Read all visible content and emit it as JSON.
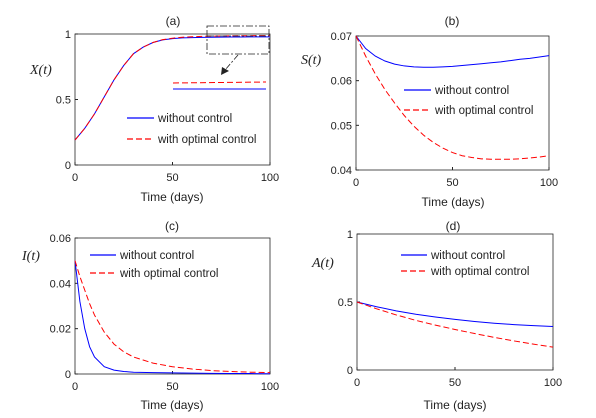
{
  "chart_data": [
    {
      "type": "line",
      "panel": "(a)",
      "title": "(a)",
      "xlabel": "Time (days)",
      "ylabel": "X(t)",
      "xlim": [
        0,
        100
      ],
      "ylim": [
        0,
        1
      ],
      "xticks": [
        "0",
        "50",
        "100"
      ],
      "yticks": [
        "0",
        "0.5",
        "1"
      ],
      "x": [
        0,
        5,
        10,
        15,
        20,
        25,
        30,
        35,
        40,
        45,
        50,
        55,
        60,
        65,
        70,
        75,
        80,
        85,
        90,
        95,
        100
      ],
      "series": [
        {
          "name": "without control",
          "color": "#0000ff",
          "dash": "solid",
          "values": [
            0.19,
            0.28,
            0.39,
            0.52,
            0.65,
            0.76,
            0.85,
            0.9,
            0.935,
            0.955,
            0.965,
            0.97,
            0.972,
            0.974,
            0.975,
            0.976,
            0.977,
            0.977,
            0.978,
            0.978,
            0.978
          ]
        },
        {
          "name": "with optimal control",
          "color": "#ff0000",
          "dash": "dashed",
          "values": [
            0.19,
            0.28,
            0.39,
            0.52,
            0.65,
            0.76,
            0.85,
            0.9,
            0.935,
            0.957,
            0.968,
            0.975,
            0.979,
            0.982,
            0.984,
            0.985,
            0.986,
            0.987,
            0.987,
            0.988,
            0.988
          ]
        }
      ],
      "inset": "zoom of t = 70–100",
      "legend": "lower-right"
    },
    {
      "type": "line",
      "panel": "(b)",
      "title": "(b)",
      "xlabel": "Time (days)",
      "ylabel": "S(t)",
      "xlim": [
        0,
        100
      ],
      "ylim": [
        0.04,
        0.07
      ],
      "xticks": [
        "0",
        "50",
        "100"
      ],
      "yticks": [
        "0.04",
        "0.05",
        "0.06",
        "0.07"
      ],
      "x": [
        0,
        5,
        10,
        15,
        20,
        25,
        30,
        35,
        40,
        45,
        50,
        55,
        60,
        65,
        70,
        75,
        80,
        85,
        90,
        95,
        100
      ],
      "series": [
        {
          "name": "without control",
          "color": "#0000ff",
          "dash": "solid",
          "values": [
            0.07,
            0.0672,
            0.0655,
            0.0644,
            0.0637,
            0.0633,
            0.0631,
            0.063,
            0.063,
            0.0631,
            0.0632,
            0.0634,
            0.0636,
            0.0638,
            0.064,
            0.0642,
            0.0645,
            0.0648,
            0.065,
            0.0653,
            0.0656
          ]
        },
        {
          "name": "with optimal control",
          "color": "#ff0000",
          "dash": "dashed",
          "values": [
            0.07,
            0.0655,
            0.0615,
            0.058,
            0.055,
            0.0522,
            0.0498,
            0.0478,
            0.0462,
            0.0449,
            0.0439,
            0.0432,
            0.0428,
            0.0425,
            0.0424,
            0.0424,
            0.0424,
            0.0425,
            0.0427,
            0.0429,
            0.0432
          ]
        }
      ],
      "legend": "right"
    },
    {
      "type": "line",
      "panel": "(c)",
      "title": "(c)",
      "xlabel": "Time (days)",
      "ylabel": "I(t)",
      "xlim": [
        0,
        100
      ],
      "ylim": [
        0,
        0.06
      ],
      "xticks": [
        "0",
        "50",
        "100"
      ],
      "yticks": [
        "0",
        "0.02",
        "0.04",
        "0.06"
      ],
      "x": [
        0,
        2.5,
        5,
        7.5,
        10,
        15,
        20,
        25,
        30,
        40,
        50,
        60,
        70,
        80,
        90,
        100
      ],
      "series": [
        {
          "name": "without control",
          "color": "#0000ff",
          "dash": "solid",
          "values": [
            0.05,
            0.032,
            0.02,
            0.012,
            0.0075,
            0.0032,
            0.0017,
            0.0011,
            0.0008,
            0.0006,
            0.0005,
            0.0004,
            0.0003,
            0.0002,
            0.0002,
            0.0001
          ]
        },
        {
          "name": "with optimal control",
          "color": "#ff0000",
          "dash": "dashed",
          "values": [
            0.05,
            0.043,
            0.037,
            0.031,
            0.026,
            0.0185,
            0.0132,
            0.0098,
            0.0075,
            0.0048,
            0.0032,
            0.0022,
            0.0015,
            0.0011,
            0.0008,
            0.0006
          ]
        }
      ],
      "legend": "top-right"
    },
    {
      "type": "line",
      "panel": "(d)",
      "title": "(d)",
      "xlabel": "Time (days)",
      "ylabel": "A(t)",
      "xlim": [
        0,
        100
      ],
      "ylim": [
        0,
        1
      ],
      "xticks": [
        "0",
        "50",
        "100"
      ],
      "yticks": [
        "0",
        "0.5",
        "1"
      ],
      "x": [
        0,
        10,
        20,
        30,
        40,
        50,
        60,
        70,
        80,
        90,
        100
      ],
      "series": [
        {
          "name": "without control",
          "color": "#0000ff",
          "dash": "solid",
          "values": [
            0.5,
            0.465,
            0.435,
            0.41,
            0.39,
            0.372,
            0.357,
            0.344,
            0.334,
            0.326,
            0.32
          ]
        },
        {
          "name": "with optimal control",
          "color": "#ff0000",
          "dash": "dashed",
          "values": [
            0.5,
            0.45,
            0.405,
            0.365,
            0.33,
            0.298,
            0.268,
            0.24,
            0.214,
            0.19,
            0.168
          ]
        }
      ],
      "legend": "top-right"
    }
  ]
}
